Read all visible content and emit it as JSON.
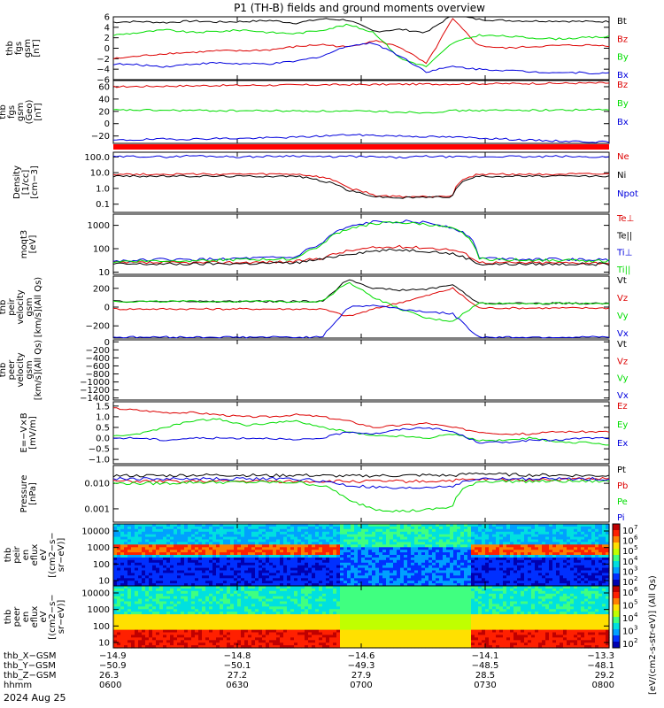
{
  "title": "P1 (TH-B) fields and ground moments overview",
  "colors": {
    "black": "#000000",
    "red": "#dd0000",
    "green": "#00dd00",
    "blue": "#0000dd",
    "bar": "#ff0000"
  },
  "colorbar_label": "[eV/(cm2-s-str-eV)] (All Qs)",
  "colorbar_ticks": [
    "10",
    "10",
    "10",
    "10",
    "10",
    "10"
  ],
  "colorbar_ticks_2": [
    "10",
    "10",
    "10",
    "10",
    "10"
  ],
  "colorbar_exps": [
    "7",
    "6",
    "5",
    "4",
    "3",
    "2"
  ],
  "colorbar_exps_2": [
    "6",
    "5",
    "4",
    "3",
    "2"
  ],
  "date_label": "2024 Aug 25",
  "chart_data": [
    {
      "id": "panel1",
      "type": "line",
      "ylabel": [
        "thb",
        "fgs",
        "gsm",
        "[nT]"
      ],
      "ticks": [
        "6",
        "4",
        "2",
        "0",
        "−2",
        "−4",
        "−6"
      ],
      "ylim": [
        -6,
        6
      ],
      "series": [
        {
          "name": "Bt",
          "color": "black",
          "values": [
            5.0,
            5.1,
            4.9,
            5.2,
            5.0,
            5.1,
            5.3,
            4.8,
            5.6,
            5.4,
            3.2,
            3.6,
            3.0,
            6.4,
            5.5,
            5.3,
            5.2,
            5.2,
            5.1,
            5.1
          ]
        },
        {
          "name": "Bz",
          "color": "red",
          "values": [
            -2.0,
            -1.5,
            -1.0,
            -0.8,
            -0.5,
            -0.5,
            -0.3,
            0.3,
            0.7,
            0.2,
            1.5,
            0.2,
            -3.0,
            5.6,
            0.5,
            0.0,
            0.3,
            0.5,
            0.6,
            0.5
          ]
        },
        {
          "name": "By",
          "color": "green",
          "values": [
            2.5,
            3.0,
            3.5,
            3.0,
            3.2,
            3.5,
            3.0,
            2.8,
            3.5,
            4.5,
            3.0,
            -2.0,
            -3.5,
            1.0,
            2.5,
            2.3,
            2.0,
            1.8,
            2.0,
            2.2
          ]
        },
        {
          "name": "Bx",
          "color": "blue",
          "values": [
            -3.0,
            -3.2,
            -3.5,
            -3.0,
            -2.8,
            -3.0,
            -3.0,
            -2.5,
            -1.5,
            0.5,
            1.0,
            -1.5,
            -4.5,
            -3.5,
            -4.0,
            -4.2,
            -4.5,
            -4.6,
            -4.7,
            -4.8
          ]
        }
      ]
    },
    {
      "id": "panel2",
      "type": "line",
      "ylabel": [
        "thb",
        "fgs",
        "gsm",
        "(Geo)",
        "[nT]"
      ],
      "ticks": [
        "60",
        "40",
        "20",
        "0",
        "−20"
      ],
      "ylim": [
        -32,
        70
      ],
      "series": [
        {
          "name": "Bz",
          "color": "red",
          "values": [
            60,
            60.5,
            61,
            61.5,
            62,
            62.2,
            62.5,
            62.8,
            63,
            63.3,
            63.5,
            64,
            64.2,
            64.5,
            64.8,
            65,
            65.2,
            65.5,
            65.8,
            66
          ]
        },
        {
          "name": "By",
          "color": "green",
          "values": [
            22,
            22,
            21.5,
            21.5,
            21,
            21,
            21,
            20.5,
            20.5,
            20,
            20,
            19,
            18,
            21,
            21.5,
            21.5,
            22,
            22,
            22.5,
            22.5
          ]
        },
        {
          "name": "Bx",
          "color": "blue",
          "values": [
            -27,
            -26,
            -25,
            -25,
            -24,
            -24,
            -23,
            -22,
            -20,
            -18,
            -19,
            -20,
            -21,
            -22,
            -23,
            -25,
            -27,
            -28,
            -29,
            -30
          ]
        }
      ]
    },
    {
      "id": "panel3",
      "type": "line",
      "scale": "log",
      "ylabel": [
        "Density",
        "[1/cc]",
        "[cm−3]"
      ],
      "ticks": [
        "100.0",
        "10.0",
        "1.0",
        "0.1"
      ],
      "ylim": [
        0.03,
        200
      ],
      "series": [
        {
          "name": "Ne",
          "color": "red",
          "values": [
            8,
            8,
            8,
            8,
            8,
            8,
            8,
            8,
            5,
            1.0,
            0.35,
            0.3,
            0.3,
            0.35,
            8,
            8,
            8,
            8,
            8,
            8
          ]
        },
        {
          "name": "Ni",
          "color": "black",
          "values": [
            6,
            6,
            6,
            6,
            6,
            6,
            6,
            6,
            3,
            0.7,
            0.3,
            0.25,
            0.28,
            0.3,
            6,
            6,
            6,
            6,
            6,
            6
          ]
        },
        {
          "name": "Npot",
          "color": "blue",
          "values": [
            100,
            110,
            100,
            120,
            110,
            100,
            110,
            120,
            100,
            110,
            100,
            90,
            110,
            100,
            100,
            110,
            100,
            110,
            100,
            100
          ]
        }
      ]
    },
    {
      "id": "panel4",
      "type": "line",
      "scale": "log",
      "ylabel": [
        "moqt3",
        "[eV]"
      ],
      "ticks": [
        "1000",
        "100",
        "10"
      ],
      "ylim": [
        8,
        3000
      ],
      "series": [
        {
          "name": "Te⊥",
          "color": "red",
          "values": [
            25,
            25,
            25,
            25,
            26,
            26,
            27,
            28,
            40,
            80,
            110,
            120,
            110,
            90,
            26,
            25,
            25,
            25,
            25,
            25
          ]
        },
        {
          "name": "Te||",
          "color": "black",
          "values": [
            22,
            22,
            22,
            22,
            23,
            23,
            24,
            25,
            35,
            60,
            80,
            90,
            80,
            60,
            22,
            22,
            22,
            22,
            22,
            22
          ]
        },
        {
          "name": "Ti⊥",
          "color": "blue",
          "values": [
            30,
            32,
            35,
            33,
            36,
            38,
            40,
            42,
            150,
            800,
            1400,
            1500,
            1300,
            800,
            40,
            38,
            36,
            35,
            34,
            33
          ]
        },
        {
          "name": "Ti||",
          "color": "green",
          "values": [
            28,
            30,
            30,
            32,
            33,
            34,
            35,
            38,
            130,
            700,
            1200,
            1300,
            1100,
            700,
            36,
            34,
            33,
            32,
            31,
            30
          ]
        }
      ]
    },
    {
      "id": "panel5",
      "type": "line",
      "ylabel": [
        "thb",
        "peir",
        "velocity",
        "gsm",
        "[km/s](All Qs)"
      ],
      "ticks": [
        "200",
        "0",
        "−200"
      ],
      "ylim": [
        -330,
        330
      ],
      "series": [
        {
          "name": "Vt",
          "color": "black",
          "values": [
            60,
            60,
            60,
            60,
            60,
            60,
            60,
            60,
            60,
            300,
            200,
            180,
            190,
            240,
            40,
            40,
            40,
            40,
            40,
            40
          ]
        },
        {
          "name": "Vz",
          "color": "red",
          "values": [
            -20,
            -20,
            -20,
            -20,
            -20,
            -20,
            -20,
            -20,
            -20,
            -100,
            -20,
            50,
            120,
            200,
            -10,
            -10,
            -10,
            -10,
            -10,
            -10
          ]
        },
        {
          "name": "Vy",
          "color": "green",
          "values": [
            60,
            60,
            60,
            60,
            60,
            60,
            60,
            60,
            60,
            270,
            100,
            -20,
            -120,
            -150,
            40,
            40,
            40,
            40,
            40,
            40
          ]
        },
        {
          "name": "Vx",
          "color": "blue",
          "values": [
            -320,
            -320,
            -320,
            -320,
            -320,
            -320,
            -320,
            -320,
            -320,
            0,
            20,
            -20,
            -50,
            -70,
            -320,
            -320,
            -320,
            -320,
            -320,
            -320
          ]
        }
      ]
    },
    {
      "id": "panel6",
      "type": "line",
      "ylabel": [
        "thb",
        "peer",
        "velocity",
        "gsm",
        "[km/s](All Qs)"
      ],
      "ticks": [
        "0",
        "−200",
        "−400",
        "−600",
        "−800",
        "−1000",
        "−1200",
        "−1400"
      ],
      "ylim": [
        -1450,
        50
      ],
      "series": [
        {
          "name": "Vt",
          "color": "black",
          "values": []
        },
        {
          "name": "Vz",
          "color": "red",
          "values": []
        },
        {
          "name": "Vy",
          "color": "green",
          "values": []
        },
        {
          "name": "Vx",
          "color": "blue",
          "values": []
        }
      ]
    },
    {
      "id": "panel7",
      "type": "line",
      "ylabel": [
        "E=−V×B",
        "[mV/m]"
      ],
      "ticks": [
        "1.5",
        "1.0",
        "0.5",
        "0.0",
        "−0.5",
        "−1.0"
      ],
      "ylim": [
        -1.2,
        1.7
      ],
      "series": [
        {
          "name": "Ez",
          "color": "red",
          "values": [
            1.4,
            1.3,
            1.2,
            1.2,
            1.1,
            1.0,
            1.0,
            1.1,
            1.0,
            0.8,
            0.5,
            0.6,
            0.7,
            0.5,
            0.3,
            0.2,
            0.2,
            0.3,
            0.3,
            0.3
          ]
        },
        {
          "name": "Ey",
          "color": "green",
          "values": [
            0.1,
            0.2,
            0.5,
            0.8,
            0.9,
            0.6,
            0.7,
            0.8,
            0.5,
            0.3,
            0.1,
            0.1,
            0.0,
            0.2,
            -0.1,
            -0.1,
            0.0,
            -0.2,
            -0.2,
            -0.3
          ]
        },
        {
          "name": "Ex",
          "color": "blue",
          "values": [
            0.0,
            0.0,
            -0.1,
            0.0,
            0.0,
            0.0,
            0.0,
            -0.1,
            0.0,
            0.3,
            0.2,
            0.4,
            0.5,
            0.3,
            -0.2,
            -0.2,
            -0.1,
            -0.1,
            0.0,
            0.0
          ]
        }
      ]
    },
    {
      "id": "panel8",
      "type": "line",
      "scale": "log",
      "ylabel": [
        "Pressure",
        "[nPa]"
      ],
      "ticks": [
        "0.010",
        "0.001"
      ],
      "ylim": [
        0.0003,
        0.05
      ],
      "series": [
        {
          "name": "Pt",
          "color": "black",
          "values": [
            0.02,
            0.02,
            0.02,
            0.021,
            0.021,
            0.021,
            0.02,
            0.021,
            0.02,
            0.019,
            0.02,
            0.02,
            0.021,
            0.02,
            0.025,
            0.022,
            0.021,
            0.021,
            0.02,
            0.02
          ]
        },
        {
          "name": "Pb",
          "color": "red",
          "values": [
            0.012,
            0.012,
            0.012,
            0.012,
            0.012,
            0.012,
            0.012,
            0.012,
            0.012,
            0.012,
            0.012,
            0.012,
            0.012,
            0.013,
            0.014,
            0.014,
            0.014,
            0.014,
            0.015,
            0.015
          ]
        },
        {
          "name": "Pe",
          "color": "green",
          "values": [
            0.01,
            0.01,
            0.01,
            0.011,
            0.011,
            0.011,
            0.011,
            0.011,
            0.008,
            0.002,
            0.001,
            0.0008,
            0.0009,
            0.0012,
            0.012,
            0.012,
            0.012,
            0.012,
            0.012,
            0.012
          ]
        },
        {
          "name": "Pi",
          "color": "blue",
          "values": [
            0.015,
            0.015,
            0.015,
            0.015,
            0.015,
            0.015,
            0.015,
            0.015,
            0.012,
            0.008,
            0.007,
            0.006,
            0.007,
            0.008,
            0.015,
            0.015,
            0.015,
            0.015,
            0.015,
            0.015
          ]
        }
      ]
    },
    {
      "id": "spec1",
      "type": "heatmap",
      "ylabel": [
        "thb",
        "peir",
        "en",
        "eflux",
        "eV",
        "[(cm2−s−",
        "sr−eV)]"
      ],
      "ticks": [
        "10000",
        "1000",
        "100",
        "10"
      ]
    },
    {
      "id": "spec2",
      "type": "heatmap",
      "ylabel": [
        "thb",
        "peer",
        "en",
        "eflux",
        "eV",
        "[(cm2−s−",
        "sr−eV)]"
      ],
      "ticks": [
        "10000",
        "1000",
        "100",
        "10"
      ]
    }
  ],
  "orbit": {
    "labels": [
      "thb_X−GSM",
      "thb_Y−GSM",
      "thb_Z−GSM",
      "hhmm"
    ],
    "columns": [
      [
        "−14.9",
        "−50.9",
        "26.3",
        "0600"
      ],
      [
        "−14.8",
        "−50.1",
        "27.2",
        "0630"
      ],
      [
        "−14.6",
        "−49.3",
        "27.9",
        "0700"
      ],
      [
        "−14.1",
        "−48.5",
        "28.5",
        "0730"
      ],
      [
        "−13.3",
        "−48.1",
        "29.2",
        "0800"
      ]
    ]
  }
}
